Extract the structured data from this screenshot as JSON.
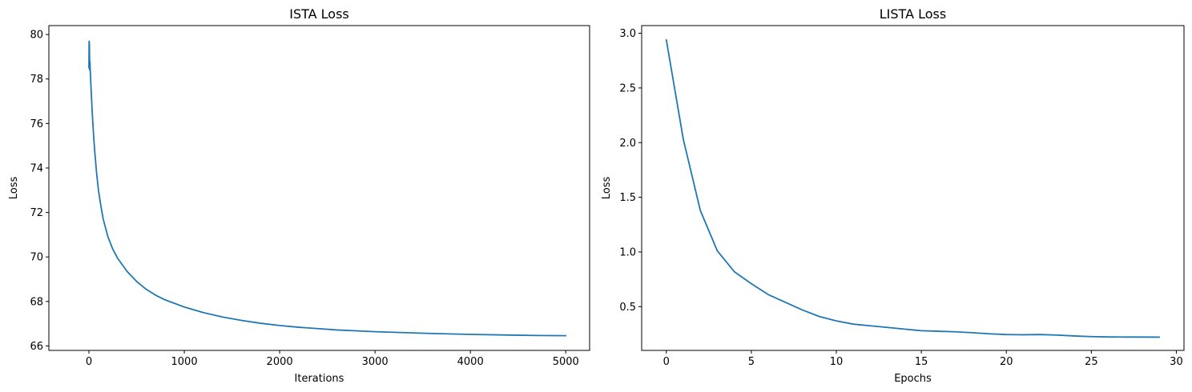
{
  "chart_data": [
    {
      "type": "line",
      "title": "ISTA Loss",
      "xlabel": "Iterations",
      "ylabel": "Loss",
      "xlim": [
        -420,
        5250
      ],
      "ylim": [
        65.8,
        80.4
      ],
      "xticks": [
        0,
        1000,
        2000,
        3000,
        4000,
        5000
      ],
      "yticks": [
        66,
        68,
        70,
        72,
        74,
        76,
        78,
        80
      ],
      "grid": false,
      "legend": "none",
      "color": "#1f77b4",
      "series": [
        {
          "x": [
            0,
            2,
            5,
            8,
            10,
            15,
            20,
            30,
            40,
            50,
            60,
            80,
            100,
            125,
            150,
            200,
            250,
            300,
            400,
            500,
            600,
            700,
            800,
            1000,
            1200,
            1400,
            1600,
            1800,
            2000,
            2200,
            2400,
            2600,
            2800,
            3000,
            3300,
            3600,
            4000,
            4400,
            4700,
            5000
          ],
          "y": [
            78.5,
            79.7,
            79.6,
            78.4,
            78.8,
            78.3,
            77.8,
            76.9,
            76.1,
            75.4,
            74.8,
            73.8,
            73.0,
            72.3,
            71.7,
            70.9,
            70.35,
            69.95,
            69.35,
            68.9,
            68.55,
            68.28,
            68.07,
            67.75,
            67.5,
            67.3,
            67.15,
            67.02,
            66.92,
            66.84,
            66.78,
            66.72,
            66.68,
            66.64,
            66.6,
            66.56,
            66.52,
            66.49,
            66.47,
            66.46
          ]
        }
      ]
    },
    {
      "type": "line",
      "title": "LISTA Loss",
      "xlabel": "Epochs",
      "ylabel": "Loss",
      "xlim": [
        -1.45,
        30.45
      ],
      "ylim": [
        0.1,
        3.07
      ],
      "xticks": [
        0,
        5,
        10,
        15,
        20,
        25,
        30
      ],
      "yticks": [
        "0.5",
        "1.0",
        "1.5",
        "2.0",
        "2.5",
        "3.0"
      ],
      "grid": false,
      "legend": "none",
      "color": "#1f77b4",
      "series": [
        {
          "x": [
            0,
            1,
            2,
            3,
            4,
            5,
            6,
            7,
            8,
            9,
            10,
            11,
            12,
            13,
            14,
            15,
            16,
            17,
            18,
            19,
            20,
            21,
            22,
            23,
            24,
            25,
            26,
            27,
            28,
            29
          ],
          "y": [
            2.94,
            2.03,
            1.38,
            1.01,
            0.82,
            0.71,
            0.61,
            0.54,
            0.47,
            0.41,
            0.37,
            0.34,
            0.325,
            0.31,
            0.295,
            0.28,
            0.275,
            0.27,
            0.262,
            0.252,
            0.245,
            0.243,
            0.245,
            0.24,
            0.232,
            0.226,
            0.223,
            0.222,
            0.222,
            0.221
          ]
        }
      ]
    }
  ]
}
